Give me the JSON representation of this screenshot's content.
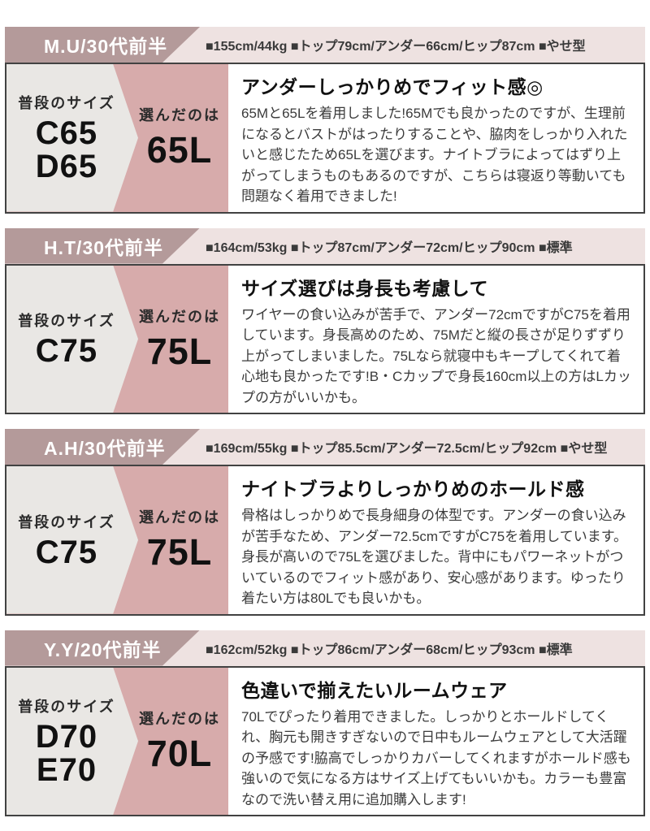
{
  "labels": {
    "usual_size": "普段のサイズ",
    "chosen": "選んだのは"
  },
  "colors": {
    "label_bg": "#b49a9a",
    "header_bg": "#eee2e1",
    "panel_pink": "#d7abab",
    "panel_gray": "#e9e7e4",
    "card_border": "#424242"
  },
  "sections": [
    {
      "person": "M.U/30代前半",
      "stats": "■155cm/44kg ■トップ79cm/アンダー66cm/ヒップ87cm ■やせ型",
      "usual_sizes": [
        "C65",
        "D65"
      ],
      "chosen_size": "65L",
      "review_title": "アンダーしっかりめでフィット感◎",
      "review_body": "65Mと65Lを着用しました!65Mでも良かったのですが、生理前になるとバストがはったりすることや、脇肉をしっかり入れたいと感じたため65Lを選びます。ナイトブラによってはずり上がってしまうものもあるのですが、こちらは寝返り等動いても問題なく着用できました!"
    },
    {
      "person": "H.T/30代前半",
      "stats": "■164cm/53kg ■トップ87cm/アンダー72cm/ヒップ90cm ■標準",
      "usual_sizes": [
        "C75"
      ],
      "chosen_size": "75L",
      "review_title": "サイズ選びは身長も考慮して",
      "review_body": "ワイヤーの食い込みが苦手で、アンダー72cmですがC75を着用しています。身長高めのため、75Mだと縦の長さが足りずずり上がってしまいました。75Lなら就寝中もキープしてくれて着心地も良かったです!B・Cカップで身長160cm以上の方はLカップの方がいいかも。"
    },
    {
      "person": "A.H/30代前半",
      "stats": "■169cm/55kg ■トップ85.5cm/アンダー72.5cm/ヒップ92cm ■やせ型",
      "usual_sizes": [
        "C75"
      ],
      "chosen_size": "75L",
      "review_title": "ナイトブラよりしっかりめのホールド感",
      "review_body": "骨格はしっかりめで長身細身の体型です。アンダーの食い込みが苦手なため、アンダー72.5cmですがC75を着用しています。身長が高いので75Lを選びました。背中にもパワーネットがついているのでフィット感があり、安心感があります。ゆったり着たい方は80Lでも良いかも。"
    },
    {
      "person": "Y.Y/20代前半",
      "stats": "■162cm/52kg ■トップ86cm/アンダー68cm/ヒップ93cm ■標準",
      "usual_sizes": [
        "D70",
        "E70"
      ],
      "chosen_size": "70L",
      "review_title": "色違いで揃えたいルームウェア",
      "review_body": "70Lでぴったり着用できました。しっかりとホールドしてくれ、胸元も開きすぎないので日中もルームウェアとして大活躍の予感です!脇高でしっかりカバーしてくれますがホールド感も強いので気になる方はサイズ上げてもいいかも。カラーも豊富なので洗い替え用に追加購入します!"
    }
  ]
}
